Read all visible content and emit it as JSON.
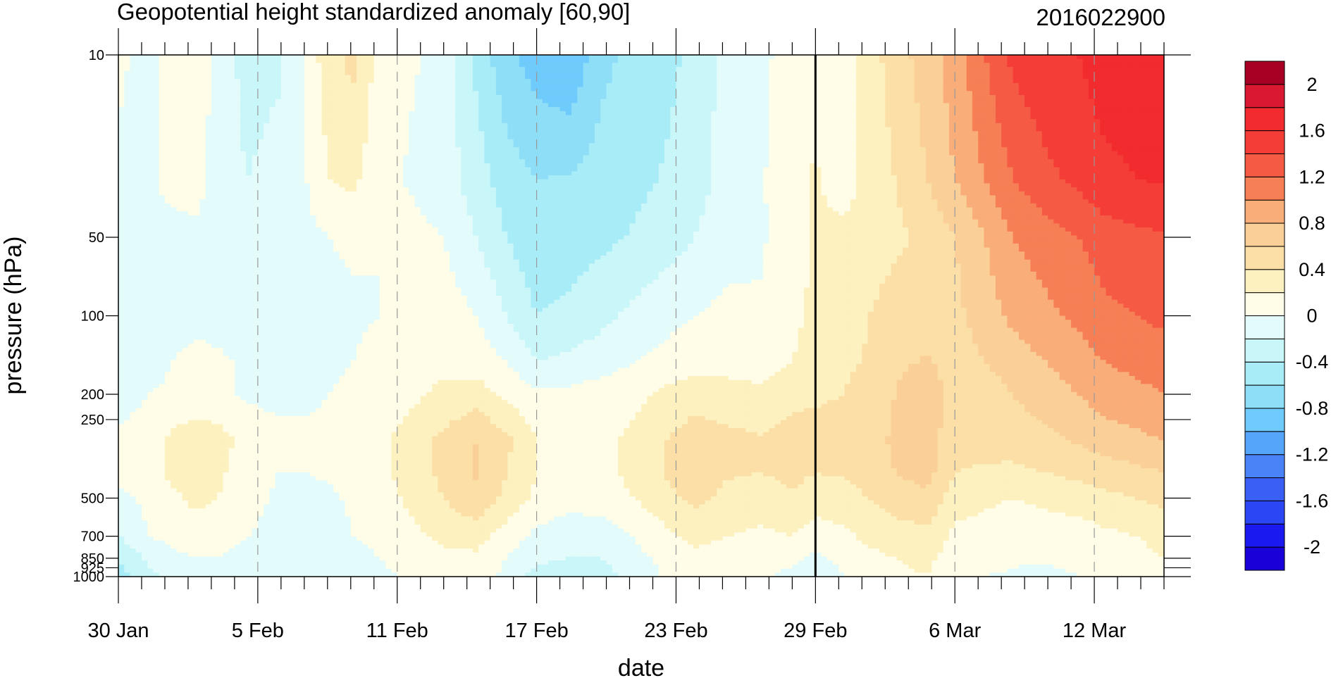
{
  "chart_data": {
    "type": "heatmap",
    "title": "Geopotential height standardized anomaly [60,90]",
    "subtitle": "2016022900",
    "xlabel": "date",
    "ylabel": "pressure (hPa)",
    "x_ticks": [
      {
        "day": 0,
        "label": "30 Jan"
      },
      {
        "day": 6,
        "label": "5 Feb"
      },
      {
        "day": 12,
        "label": "11 Feb"
      },
      {
        "day": 18,
        "label": "17 Feb"
      },
      {
        "day": 24,
        "label": "23 Feb"
      },
      {
        "day": 30,
        "label": "29 Feb"
      },
      {
        "day": 36,
        "label": "6 Mar"
      },
      {
        "day": 42,
        "label": "12 Mar"
      }
    ],
    "xlim": [
      0,
      45
    ],
    "analysis_day": 30,
    "y_scale": "log",
    "ylim": [
      1000,
      10
    ],
    "y_ticks": [
      {
        "p": 10,
        "label": "10"
      },
      {
        "p": 50,
        "label": "50"
      },
      {
        "p": 100,
        "label": "100"
      },
      {
        "p": 200,
        "label": "200"
      },
      {
        "p": 250,
        "label": "250"
      },
      {
        "p": 500,
        "label": "500"
      },
      {
        "p": 700,
        "label": "700"
      },
      {
        "p": 850,
        "label": "850"
      },
      {
        "p": 925,
        "label": "925"
      },
      {
        "p": 1000,
        "label": "1000"
      }
    ],
    "colorbar": {
      "levels": [
        -2.2,
        -2,
        -1.8,
        -1.6,
        -1.4,
        -1.2,
        -1,
        -0.8,
        -0.6,
        -0.4,
        -0.2,
        0,
        0.2,
        0.4,
        0.6,
        0.8,
        1,
        1.2,
        1.4,
        1.6,
        1.8,
        2,
        2.2
      ],
      "colors": [
        "#1a00d8",
        "#1a1af0",
        "#2a46f5",
        "#3a5ff5",
        "#4a82f7",
        "#55a6fa",
        "#6fcbfb",
        "#8edef8",
        "#a8ecf8",
        "#c8f6f9",
        "#e3fbfb",
        "#fffde7",
        "#fdf1c0",
        "#fbdfa7",
        "#fbcf98",
        "#f9ad78",
        "#f77f55",
        "#f55a45",
        "#f53d38",
        "#f22b2f",
        "#d81931",
        "#a80024"
      ],
      "labels": [
        {
          "v": 2,
          "text": "2"
        },
        {
          "v": 1.6,
          "text": "1.6"
        },
        {
          "v": 1.2,
          "text": "1.2"
        },
        {
          "v": 0.8,
          "text": "0.8"
        },
        {
          "v": 0.4,
          "text": "0.4"
        },
        {
          "v": 0,
          "text": "0"
        },
        {
          "v": -0.4,
          "text": "-0.4"
        },
        {
          "v": -0.8,
          "text": "-0.8"
        },
        {
          "v": -1.2,
          "text": "-1.2"
        },
        {
          "v": -1.6,
          "text": "-1.6"
        },
        {
          "v": -2,
          "text": "-2"
        }
      ]
    },
    "grid_days": [
      0,
      1.3,
      2.3,
      3.3,
      4.3,
      5.6,
      6.9,
      8.1,
      9.1,
      10.1,
      11.3,
      12.6,
      14,
      15.4,
      16.7,
      18,
      19.4,
      20.8,
      22.2,
      23.6,
      24.8,
      26.2,
      27.7,
      29,
      30,
      31.2,
      32.3,
      33.4,
      34.8,
      36,
      37.3,
      38.5,
      39.9,
      41.3,
      42.4,
      43.8,
      45
    ],
    "grid_values": [
      [
        0.05,
        -0.1,
        0.1,
        0.1,
        -0.05,
        -0.3,
        -0.25,
        0.05,
        0.35,
        0.45,
        0.1,
        0.02,
        -0.05,
        -0.45,
        -0.75,
        -0.9,
        -1.0,
        -0.65,
        -0.55,
        -0.45,
        -0.35,
        -0.12,
        -0.05,
        0.1,
        0.12,
        0.1,
        0.3,
        0.5,
        0.7,
        0.9,
        1.2,
        1.45,
        1.55,
        1.6,
        1.7,
        1.72,
        1.75
      ],
      [
        -0.05,
        -0.05,
        0.1,
        0.1,
        -0.1,
        -0.2,
        -0.1,
        0.0,
        0.2,
        0.25,
        0.05,
        -0.02,
        -0.1,
        -0.3,
        -0.5,
        -0.6,
        -0.58,
        -0.52,
        -0.45,
        -0.38,
        -0.3,
        -0.1,
        -0.02,
        0.15,
        0.22,
        0.12,
        0.25,
        0.4,
        0.6,
        0.8,
        1.0,
        1.2,
        1.35,
        1.45,
        1.55,
        1.6,
        1.62
      ],
      [
        -0.1,
        -0.1,
        -0.1,
        -0.05,
        -0.08,
        -0.1,
        -0.08,
        -0.05,
        0.0,
        0.02,
        0.0,
        0.05,
        0.0,
        -0.2,
        -0.4,
        -0.55,
        -0.5,
        -0.45,
        -0.38,
        -0.3,
        -0.2,
        -0.08,
        -0.02,
        0.1,
        0.22,
        0.25,
        0.28,
        0.35,
        0.45,
        0.6,
        0.8,
        1.0,
        1.1,
        1.2,
        1.3,
        1.35,
        1.38
      ],
      [
        -0.1,
        -0.1,
        -0.08,
        -0.05,
        -0.05,
        -0.06,
        -0.08,
        -0.05,
        -0.03,
        -0.02,
        0.0,
        0.05,
        0.1,
        0.0,
        -0.2,
        -0.4,
        -0.35,
        -0.25,
        -0.15,
        -0.05,
        0.0,
        0.05,
        0.02,
        0.15,
        0.25,
        0.32,
        0.4,
        0.5,
        0.5,
        0.55,
        0.7,
        0.85,
        0.95,
        1.05,
        1.15,
        1.2,
        1.25
      ],
      [
        -0.1,
        -0.05,
        0.0,
        0.05,
        0.02,
        -0.02,
        -0.05,
        -0.05,
        -0.02,
        0.0,
        0.05,
        0.1,
        0.15,
        0.1,
        0.0,
        -0.2,
        -0.15,
        -0.1,
        0.0,
        0.05,
        0.1,
        0.1,
        0.08,
        0.2,
        0.3,
        0.35,
        0.42,
        0.55,
        0.62,
        0.5,
        0.6,
        0.7,
        0.8,
        0.9,
        1.0,
        1.05,
        1.1
      ],
      [
        -0.1,
        0.0,
        0.02,
        0.03,
        0.02,
        -0.02,
        -0.05,
        -0.03,
        0.0,
        0.02,
        0.05,
        0.15,
        0.25,
        0.3,
        0.15,
        0.05,
        0.05,
        0.1,
        0.15,
        0.25,
        0.32,
        0.3,
        0.25,
        0.35,
        0.38,
        0.4,
        0.5,
        0.6,
        0.8,
        0.45,
        0.5,
        0.6,
        0.7,
        0.8,
        0.9,
        0.95,
        1.0
      ],
      [
        0.05,
        0.1,
        0.25,
        0.35,
        0.3,
        0.1,
        0.05,
        0.03,
        0.05,
        0.1,
        0.15,
        0.3,
        0.45,
        0.6,
        0.45,
        0.2,
        0.1,
        0.15,
        0.25,
        0.4,
        0.5,
        0.45,
        0.42,
        0.48,
        0.45,
        0.45,
        0.55,
        0.62,
        0.72,
        0.45,
        0.45,
        0.5,
        0.55,
        0.62,
        0.7,
        0.75,
        0.8
      ],
      [
        0.05,
        0.1,
        0.25,
        0.35,
        0.25,
        0.05,
        0.0,
        0.0,
        0.02,
        0.05,
        0.15,
        0.3,
        0.45,
        0.62,
        0.4,
        0.2,
        0.1,
        0.15,
        0.25,
        0.42,
        0.5,
        0.42,
        0.4,
        0.45,
        0.4,
        0.42,
        0.5,
        0.6,
        0.68,
        0.4,
        0.38,
        0.35,
        0.4,
        0.45,
        0.5,
        0.55,
        0.6
      ],
      [
        -0.05,
        0.05,
        0.15,
        0.25,
        0.2,
        0.05,
        -0.02,
        -0.05,
        -0.02,
        0.02,
        0.1,
        0.25,
        0.4,
        0.55,
        0.35,
        0.15,
        0.05,
        0.1,
        0.2,
        0.35,
        0.45,
        0.35,
        0.32,
        0.38,
        0.3,
        0.32,
        0.4,
        0.5,
        0.55,
        0.3,
        0.25,
        0.2,
        0.25,
        0.3,
        0.35,
        0.4,
        0.45
      ],
      [
        -0.2,
        0.0,
        0.05,
        0.1,
        0.05,
        0.0,
        -0.05,
        -0.1,
        -0.05,
        0.0,
        0.05,
        0.15,
        0.25,
        0.3,
        0.1,
        -0.05,
        -0.1,
        -0.1,
        0.0,
        0.15,
        0.25,
        0.2,
        0.15,
        0.2,
        0.1,
        0.15,
        0.25,
        0.3,
        0.35,
        0.15,
        0.1,
        0.05,
        0.08,
        0.1,
        0.15,
        0.2,
        0.25
      ],
      [
        -0.4,
        -0.15,
        -0.05,
        0.0,
        0.0,
        -0.05,
        -0.1,
        -0.15,
        -0.1,
        -0.05,
        0.0,
        0.1,
        0.15,
        0.15,
        0.0,
        -0.15,
        -0.2,
        -0.2,
        -0.05,
        0.05,
        0.15,
        0.1,
        0.05,
        0.05,
        -0.05,
        0.05,
        0.15,
        0.2,
        0.25,
        0.1,
        0.05,
        0.02,
        0.02,
        0.05,
        0.1,
        0.15,
        0.2
      ],
      [
        -0.5,
        -0.25,
        -0.15,
        -0.05,
        -0.05,
        -0.1,
        -0.15,
        -0.2,
        -0.15,
        -0.1,
        -0.05,
        0.05,
        0.1,
        0.1,
        -0.05,
        -0.3,
        -0.35,
        -0.3,
        -0.1,
        0.02,
        0.1,
        0.05,
        0.02,
        -0.05,
        -0.15,
        0.0,
        0.1,
        0.15,
        0.2,
        0.05,
        0.0,
        -0.02,
        -0.05,
        0.0,
        0.05,
        0.1,
        0.15
      ]
    ],
    "grid_pressures": [
      10,
      30,
      50,
      100,
      150,
      200,
      300,
      400,
      500,
      700,
      850,
      1000
    ]
  }
}
